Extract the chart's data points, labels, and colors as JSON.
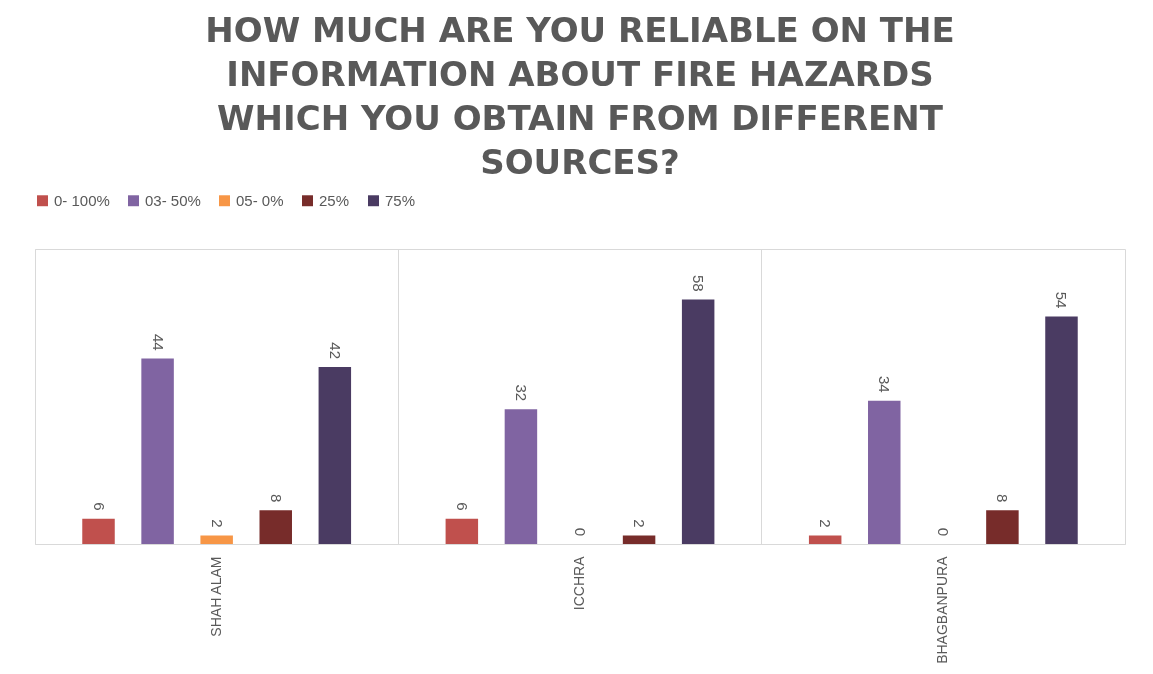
{
  "chart_data": {
    "type": "bar",
    "title": "HOW MUCH ARE YOU  RELIABLE ON THE INFORMATION ABOUT FIRE HAZARDS WHICH YOU OBTAIN FROM DIFFERENT SOURCES?",
    "categories": [
      "SHAH ALAM",
      "ICCHRA",
      "BHAGBANPURA"
    ],
    "series": [
      {
        "name": "0- 100%",
        "color": "#c0504d",
        "values": [
          6,
          6,
          2
        ]
      },
      {
        "name": "03- 50%",
        "color": "#8064a2",
        "values": [
          44,
          32,
          34
        ]
      },
      {
        "name": "05- 0%",
        "color": "#f79646",
        "values": [
          2,
          0,
          0
        ]
      },
      {
        "name": "25%",
        "color": "#772c2a",
        "values": [
          8,
          2,
          8
        ]
      },
      {
        "name": "75%",
        "color": "#4a3b62",
        "values": [
          42,
          58,
          54
        ]
      }
    ],
    "ylim": [
      0,
      70
    ],
    "data_labels": true,
    "legend": "top",
    "grid": "x",
    "tick_labels": "x"
  }
}
